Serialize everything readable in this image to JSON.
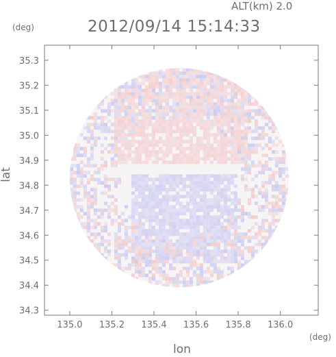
{
  "header": {
    "alt_label": "ALT(km) 2.0",
    "datetime": "2012/09/14 15:14:33",
    "y_unit": "(deg)",
    "x_unit": "(deg)"
  },
  "chart_data": {
    "type": "heatmap",
    "title": "2012/09/14 15:14:33",
    "xlabel": "lon",
    "ylabel": "lat",
    "xlim": [
      134.88,
      136.18
    ],
    "ylim": [
      34.28,
      35.36
    ],
    "x_ticks": [
      135.0,
      135.2,
      135.4,
      135.6,
      135.8,
      136.0
    ],
    "x_tick_labels": [
      "135.0",
      "135.2",
      "135.4",
      "135.6",
      "135.8",
      "136.0"
    ],
    "y_ticks": [
      34.3,
      34.4,
      34.5,
      34.6,
      34.7,
      34.8,
      34.9,
      35.0,
      35.1,
      35.2,
      35.3
    ],
    "y_tick_labels": [
      "34.3",
      "34.4",
      "34.5",
      "34.6",
      "34.7",
      "34.8",
      "34.9",
      "35.0",
      "35.1",
      "35.2",
      "35.3"
    ],
    "radar_center": [
      135.52,
      34.83
    ],
    "radar_radius_deg": 0.52,
    "grid": false,
    "colors": {
      "positive": "#f2c8c8",
      "negative": "#c8c8f0",
      "axis": "#7a7a7a"
    }
  }
}
